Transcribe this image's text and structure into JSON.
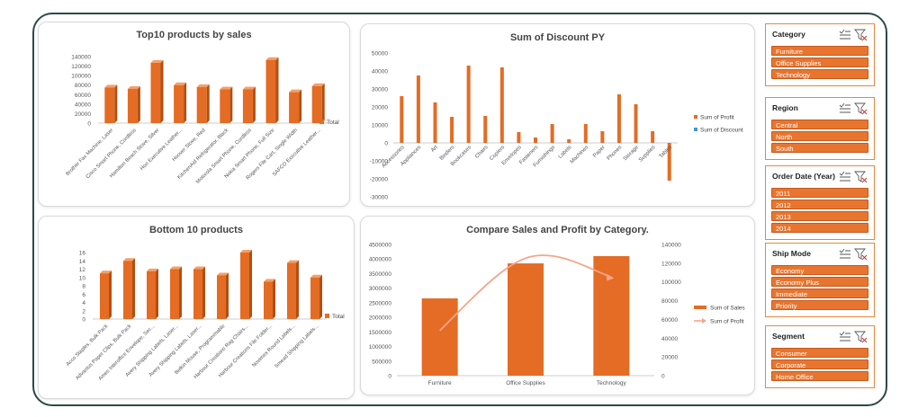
{
  "colors": {
    "bar": "#e46c24",
    "bar_dark": "#b24f12",
    "bar_top": "#f3a06a",
    "profit_line": "#f4a58a",
    "frame": "#2c4a47",
    "slicer_border": "#e8883e",
    "slicer_item": "#e8752f"
  },
  "charts": {
    "top10": {
      "title": "Top10 products by sales",
      "legend": "Total"
    },
    "discount": {
      "title": "Sum of Discount  PY",
      "legend": [
        "Sum of Profit",
        "Sum of Discount"
      ]
    },
    "bottom10": {
      "title": "Bottom 10 products",
      "legend": "Total"
    },
    "compare": {
      "title": "Compare Sales and Profit by Category.",
      "legend": [
        "Sum of Sales",
        "Sum of Profit"
      ]
    }
  },
  "chart_data": [
    {
      "type": "bar",
      "title": "Top10 products by sales",
      "legend": [
        "Total"
      ],
      "categories": [
        "Brother Fax Machine, Laser",
        "Cisco Smart Phone, Cordless",
        "Hamilton Beach Stove, Silver",
        "Hon Executive Leather...",
        "Hoover Stove, Red",
        "KitchenAid Refrigerator, Black",
        "Motorola Smart Phone, Cordless",
        "Nokia Smart Phone, Full Size",
        "Rogers File Cart, Single Width",
        "SAFCO Executive Leather..."
      ],
      "series": [
        {
          "name": "Total",
          "values": [
            75000,
            72000,
            127000,
            80000,
            76000,
            71000,
            71000,
            133000,
            65000,
            78000
          ]
        }
      ],
      "yticks": [
        "140000",
        "120000",
        "100000",
        "80000",
        "60000",
        "40000",
        "20000",
        "0"
      ],
      "ylim": [
        0,
        140000
      ]
    },
    {
      "type": "bar",
      "title": "Sum of Discount  PY",
      "legend": [
        "Sum of Profit",
        "Sum of Discount"
      ],
      "categories": [
        "Accessories",
        "Appliances",
        "Art",
        "Binders",
        "Bookcases",
        "Chairs",
        "Copiers",
        "Envelopes",
        "Fasteners",
        "Furnishings",
        "Labels",
        "Machines",
        "Paper",
        "Phones",
        "Storage",
        "Supplies",
        "Tables"
      ],
      "series": [
        {
          "name": "Sum of Profit",
          "values": [
            26000,
            37500,
            22500,
            14500,
            43000,
            15000,
            42000,
            6000,
            3000,
            10500,
            2000,
            10500,
            6500,
            27000,
            21500,
            6500,
            -21000
          ]
        },
        {
          "name": "Sum of Discount",
          "values": [
            0,
            0,
            0,
            0,
            0,
            0,
            0,
            0,
            0,
            0,
            0,
            0,
            0,
            0,
            0,
            0,
            0
          ]
        }
      ],
      "yticks": [
        "50000",
        "40000",
        "30000",
        "20000",
        "10000",
        "0",
        "-10000",
        "-20000",
        "-30000"
      ],
      "ylim": [
        -30000,
        50000
      ]
    },
    {
      "type": "bar",
      "title": "Bottom 10 products",
      "legend": [
        "Total"
      ],
      "categories": [
        "Acco Staples, Bulk Pack",
        "Advantus Paper Clips, Bulk Pack",
        "Ames Interoffice Envelope, Sec...",
        "Avery Shipping Labels, Laser...",
        "Avery Shipping Labels, Laser...",
        "Belkin Mouse, Programmable",
        "Harbour Creations Rag Chairs...",
        "Harbour Creations File Folder...",
        "Novimex Round Labels...",
        "Smead Shipping Labels..."
      ],
      "series": [
        {
          "name": "Total",
          "values": [
            11,
            14,
            11.5,
            12,
            12,
            10.5,
            16,
            9,
            13.5,
            10
          ]
        }
      ],
      "yticks": [
        "16",
        "14",
        "12",
        "10",
        "8",
        "6",
        "4",
        "2",
        "0"
      ],
      "ylim": [
        0,
        16
      ]
    },
    {
      "type": "bar",
      "title": "Compare Sales and Profit by Category.",
      "legend": [
        "Sum of Sales",
        "Sum of Profit"
      ],
      "categories": [
        "Furniture",
        "Office Supplies",
        "Technology"
      ],
      "series": [
        {
          "name": "Sum of Sales",
          "values": [
            2650000,
            3850000,
            4100000
          ]
        },
        {
          "name": "Sum of Profit",
          "values": [
            48000,
            122000,
            105000
          ]
        }
      ],
      "yticks": [
        "4500000",
        "4000000",
        "3500000",
        "3000000",
        "2500000",
        "2000000",
        "1500000",
        "1000000",
        "500000",
        "0"
      ],
      "y2ticks": [
        "140000",
        "120000",
        "100000",
        "80000",
        "60000",
        "40000",
        "20000",
        "0"
      ],
      "ylim": [
        0,
        4500000
      ],
      "y2lim": [
        0,
        140000
      ]
    }
  ],
  "slicers": [
    {
      "title": "Category",
      "items": [
        "Furniture",
        "Office Supplies",
        "Technology"
      ]
    },
    {
      "title": "Region",
      "items": [
        "Central",
        "North",
        "South"
      ]
    },
    {
      "title": "Order Date (Year)",
      "items": [
        "2011",
        "2012",
        "2013",
        "2014"
      ]
    },
    {
      "title": "Ship Mode",
      "items": [
        "Economy",
        "Economy Plus",
        "Immediate",
        "Priority"
      ]
    },
    {
      "title": "Segment",
      "items": [
        "Consumer",
        "Corporate",
        "Home Office"
      ]
    }
  ]
}
